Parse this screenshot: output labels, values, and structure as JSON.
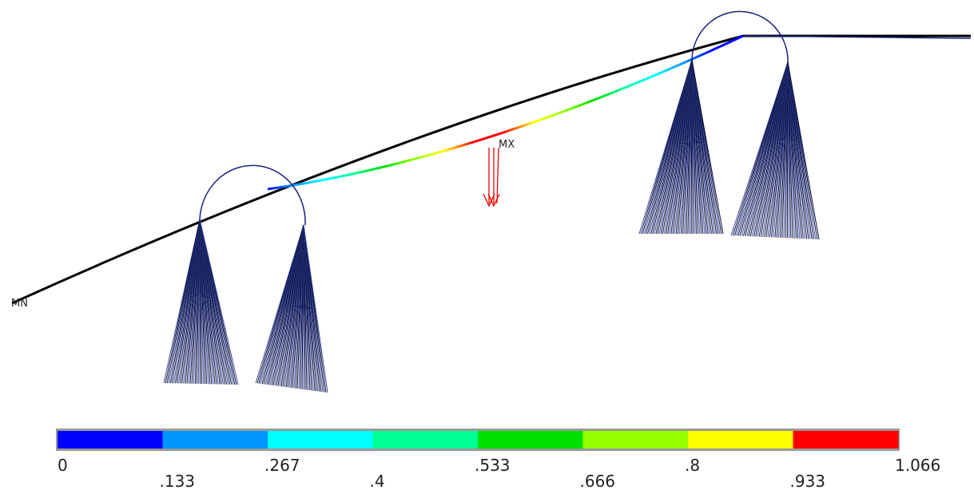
{
  "labels": {
    "min": "MN",
    "max": "MX"
  },
  "legend": {
    "ticks": [
      "0",
      ".133",
      ".267",
      ".4",
      ".533",
      ".666",
      ".8",
      ".933",
      "1.066"
    ],
    "colors": [
      "#0000ff",
      "#0096ff",
      "#00ffff",
      "#00ff96",
      "#00e000",
      "#96ff00",
      "#ffff00",
      "#ff0000"
    ]
  }
}
